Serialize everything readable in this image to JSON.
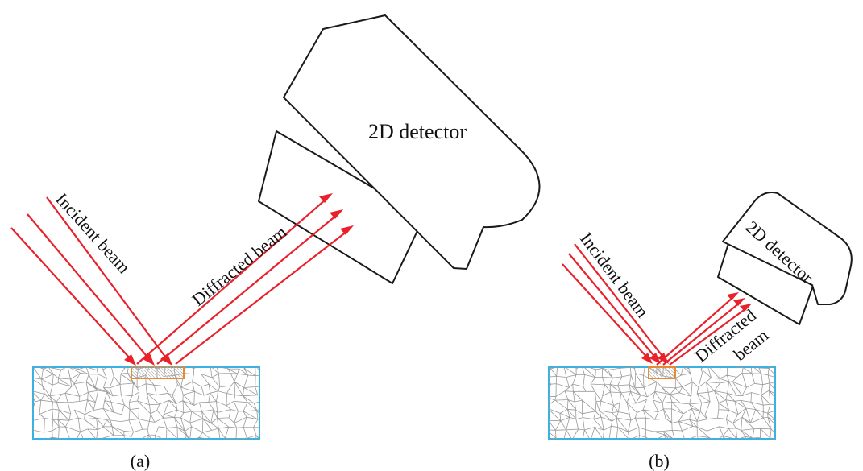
{
  "panel_a": {
    "detector_label": "2D detector",
    "incident_label": "Incident beam",
    "diffracted_label": "Diffracted beam",
    "caption": "(a)"
  },
  "panel_b": {
    "detector_label": "2D detector",
    "incident_label": "Incident beam",
    "diffracted_label_line1": "Diffracted",
    "diffracted_label_line2": "beam",
    "caption": "(b)"
  },
  "colors": {
    "beam": "#e8212b",
    "sample_border": "#35b3e6",
    "irradiated_spot": "#e88a32",
    "grain_lines": "#9a9a9a",
    "detector_outline": "#1a1a1a"
  }
}
